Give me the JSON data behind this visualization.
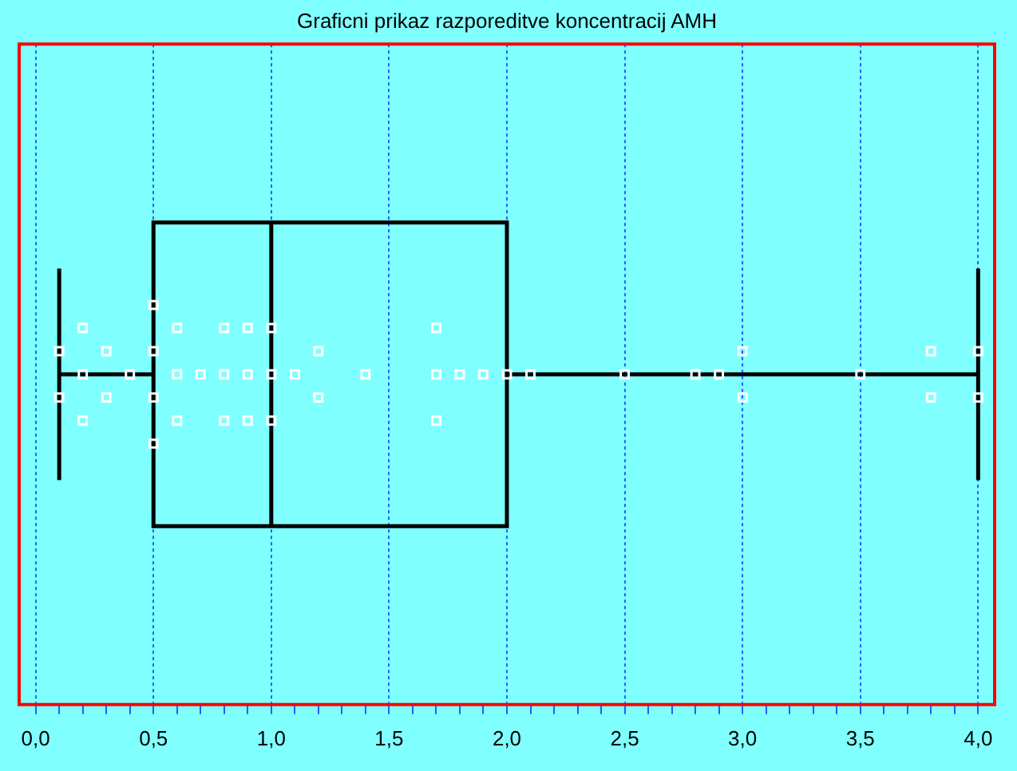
{
  "chart_data": {
    "type": "box",
    "title": "Graficni prikaz razporeditve koncentracij AMH",
    "orientation": "horizontal",
    "categories": [
      null
    ],
    "boxes": [
      {
        "low": 0.1,
        "q1": 0.5,
        "median": 1.0,
        "q3": 2.0,
        "high": 4.0
      }
    ],
    "series": [
      {
        "type": "scatter",
        "color": "#ffffff",
        "x": [
          null,
          null,
          null,
          null,
          null,
          null,
          null,
          null,
          null,
          null,
          null,
          null,
          null,
          null,
          null,
          null,
          null,
          null,
          null,
          null,
          null,
          null,
          null,
          null,
          null,
          null,
          null,
          null,
          null,
          null,
          null,
          null,
          null,
          null,
          null,
          null,
          null,
          null,
          null,
          null,
          null,
          null,
          null,
          null,
          null,
          null
        ],
        "values": [
          0.1,
          0.1,
          0.2,
          0.2,
          0.2,
          0.3,
          0.3,
          0.4,
          0.5,
          0.5,
          0.5,
          0.5,
          0.6,
          0.6,
          0.6,
          0.7,
          0.8,
          0.8,
          0.8,
          0.9,
          0.9,
          0.9,
          1.0,
          1.0,
          1.0,
          1.1,
          1.2,
          1.2,
          1.4,
          1.7,
          1.7,
          1.7,
          1.8,
          1.9,
          2.0,
          2.1,
          2.5,
          2.8,
          2.9,
          3.0,
          3.0,
          3.5,
          3.8,
          3.8,
          4.0,
          4.0
        ]
      }
    ],
    "xlim": [
      -0.07,
      4.07
    ],
    "xticks": [
      {
        "value": 0,
        "label": "0,0"
      },
      {
        "value": 0.1,
        "label": null
      },
      {
        "value": 0.2,
        "label": null
      },
      {
        "value": 0.3,
        "label": null
      },
      {
        "value": 0.4,
        "label": null
      },
      {
        "value": 0.5,
        "label": "0,5"
      },
      {
        "value": 0.6,
        "label": null
      },
      {
        "value": 0.7,
        "label": null
      },
      {
        "value": 0.8,
        "label": null
      },
      {
        "value": 0.9,
        "label": null
      },
      {
        "value": 1,
        "label": "1,0"
      },
      {
        "value": 1.1,
        "label": null
      },
      {
        "value": 1.2,
        "label": null
      },
      {
        "value": 1.3,
        "label": null
      },
      {
        "value": 1.4,
        "label": null
      },
      {
        "value": 1.5,
        "label": "1,5"
      },
      {
        "value": 1.6,
        "label": null
      },
      {
        "value": 1.7,
        "label": null
      },
      {
        "value": 1.8,
        "label": null
      },
      {
        "value": 1.9,
        "label": null
      },
      {
        "value": 2,
        "label": "2,0"
      },
      {
        "value": 2.1,
        "label": null
      },
      {
        "value": 2.2,
        "label": null
      },
      {
        "value": 2.3,
        "label": null
      },
      {
        "value": 2.4,
        "label": null
      },
      {
        "value": 2.5,
        "label": "2,5"
      },
      {
        "value": 2.6,
        "label": null
      },
      {
        "value": 2.7,
        "label": null
      },
      {
        "value": 2.8,
        "label": null
      },
      {
        "value": 2.9,
        "label": null
      },
      {
        "value": 3,
        "label": "3,0"
      },
      {
        "value": 3.1,
        "label": null
      },
      {
        "value": 3.2,
        "label": null
      },
      {
        "value": 3.3,
        "label": null
      },
      {
        "value": 3.4,
        "label": null
      },
      {
        "value": 3.5,
        "label": "3,5"
      },
      {
        "value": 3.6,
        "label": null
      },
      {
        "value": 3.7,
        "label": null
      },
      {
        "value": 3.8,
        "label": null
      },
      {
        "value": 3.9,
        "label": null
      },
      {
        "value": 4,
        "label": "4,0"
      }
    ],
    "grid": "x",
    "legend": false,
    "marker": "square"
  }
}
